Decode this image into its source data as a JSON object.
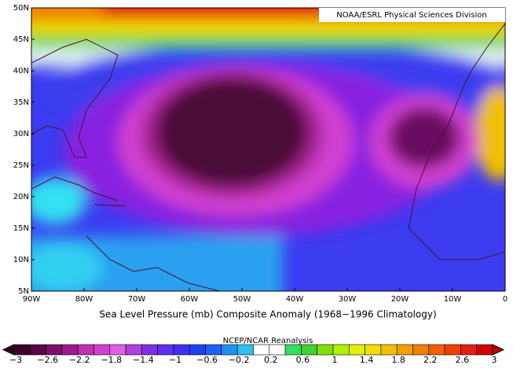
{
  "map": {
    "credit": "NOAA/ESRL Physical Sciences Division",
    "lat_labels": [
      "50N",
      "45N",
      "40N",
      "35N",
      "30N",
      "25N",
      "20N",
      "15N",
      "10N",
      "5N"
    ],
    "lon_labels": [
      "90W",
      "80W",
      "70W",
      "60W",
      "50W",
      "40W",
      "30W",
      "20W",
      "10W",
      "0"
    ],
    "title": "Sea Level Pressure (mb) Composite Anomaly (1968−1996 Climatology)",
    "colorbar_title": "NCEP/NCAR Reanalysis",
    "colorbar_labels": [
      "−3",
      "−2.6",
      "−2.2",
      "−1.8",
      "−1.4",
      "−1",
      "−0.6",
      "−0.2",
      "0.2",
      "0.6",
      "1",
      "1.4",
      "1.8",
      "2.2",
      "2.6",
      "3"
    ]
  }
}
